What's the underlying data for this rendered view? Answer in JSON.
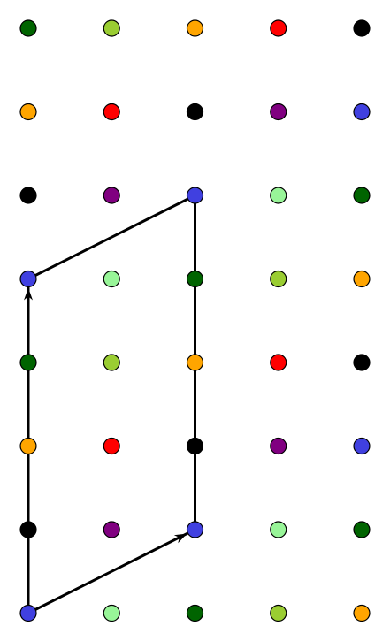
{
  "colors": {
    "dark_green": "#006400",
    "yellow_green": "#9acd32",
    "orange": "#ffa500",
    "red": "#ff0000",
    "black": "#000000",
    "purple": "#800080",
    "blue": "#4040e0",
    "light_green": "#98f598",
    "stroke": "#000000",
    "line": "#000000"
  },
  "grid": {
    "columns": 5,
    "rows": 8,
    "dots": [
      [
        "dark_green",
        "yellow_green",
        "orange",
        "red",
        "black"
      ],
      [
        "orange",
        "red",
        "black",
        "purple",
        "blue"
      ],
      [
        "black",
        "purple",
        "blue",
        "light_green",
        "dark_green"
      ],
      [
        "blue",
        "light_green",
        "dark_green",
        "yellow_green",
        "orange"
      ],
      [
        "dark_green",
        "yellow_green",
        "orange",
        "red",
        "black"
      ],
      [
        "orange",
        "red",
        "black",
        "purple",
        "blue"
      ],
      [
        "black",
        "purple",
        "blue",
        "light_green",
        "dark_green"
      ],
      [
        "blue",
        "light_green",
        "dark_green",
        "yellow_green",
        "orange"
      ]
    ]
  },
  "path": {
    "points": [
      {
        "col": 0,
        "row": 7
      },
      {
        "col": 2,
        "row": 6
      },
      {
        "col": 2,
        "row": 2
      },
      {
        "col": 0,
        "row": 3
      },
      {
        "col": 0,
        "row": 7
      }
    ],
    "arrow_segments": [
      {
        "from": {
          "col": 0,
          "row": 7
        },
        "to": {
          "col": 2,
          "row": 6
        }
      },
      {
        "from": {
          "col": 0,
          "row": 7
        },
        "to": {
          "col": 0,
          "row": 3
        }
      }
    ]
  }
}
